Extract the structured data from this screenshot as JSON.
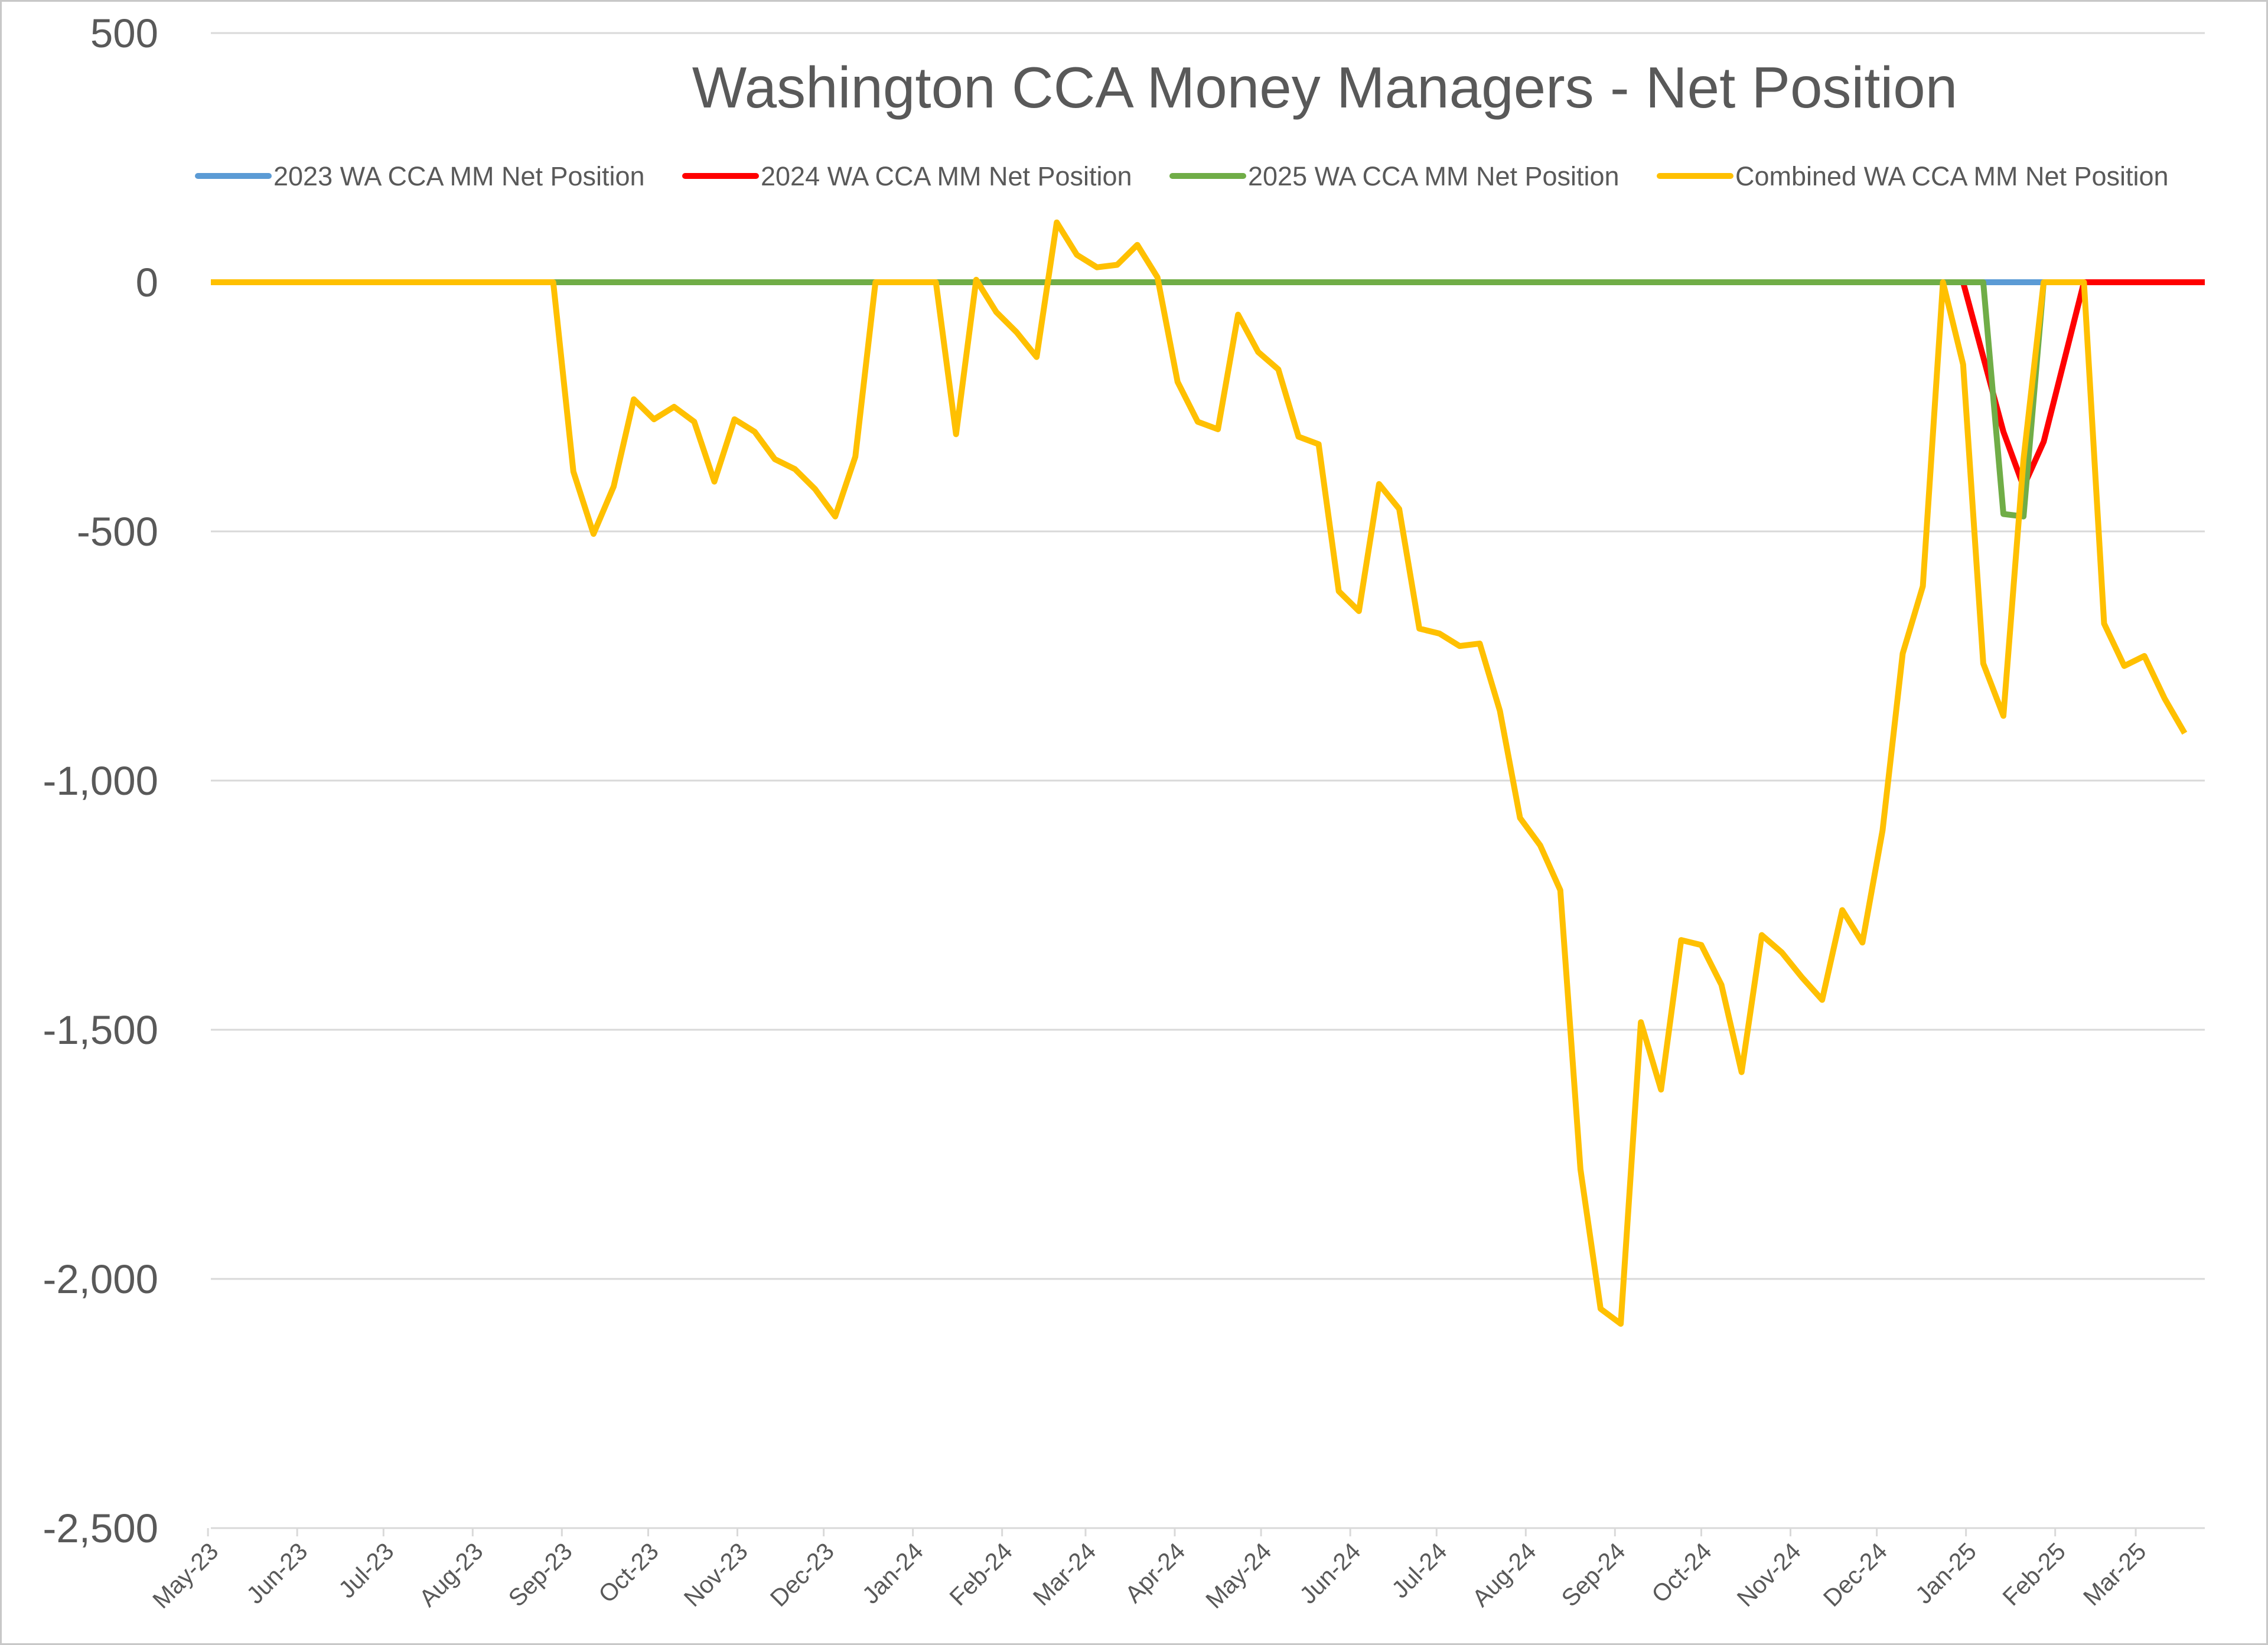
{
  "chart_data": {
    "type": "line",
    "title": "Washington CCA Money Managers - Net Position",
    "xlabel": "",
    "ylabel": "",
    "ylim": [
      -2500,
      500
    ],
    "yticks": [
      500,
      0,
      -500,
      -1000,
      -1500,
      -2000,
      -2500
    ],
    "ytick_labels": [
      "500",
      "0",
      "-500",
      "-1,000",
      "-1,500",
      "-2,000",
      "-2,500"
    ],
    "grid": true,
    "legend_position": "top",
    "x_start": "2023-05-02",
    "x_end": "2025-03-25",
    "month_ticks": [
      {
        "label": "May-23",
        "date": "2023-05-01"
      },
      {
        "label": "Jun-23",
        "date": "2023-06-01"
      },
      {
        "label": "Jul-23",
        "date": "2023-07-01"
      },
      {
        "label": "Aug-23",
        "date": "2023-08-01"
      },
      {
        "label": "Sep-23",
        "date": "2023-09-01"
      },
      {
        "label": "Oct-23",
        "date": "2023-10-01"
      },
      {
        "label": "Nov-23",
        "date": "2023-11-01"
      },
      {
        "label": "Dec-23",
        "date": "2023-12-01"
      },
      {
        "label": "Jan-24",
        "date": "2024-01-01"
      },
      {
        "label": "Feb-24",
        "date": "2024-02-01"
      },
      {
        "label": "Mar-24",
        "date": "2024-03-01"
      },
      {
        "label": "Apr-24",
        "date": "2024-04-01"
      },
      {
        "label": "May-24",
        "date": "2024-05-01"
      },
      {
        "label": "Jun-24",
        "date": "2024-06-01"
      },
      {
        "label": "Jul-24",
        "date": "2024-07-01"
      },
      {
        "label": "Aug-24",
        "date": "2024-08-01"
      },
      {
        "label": "Sep-24",
        "date": "2024-09-01"
      },
      {
        "label": "Oct-24",
        "date": "2024-10-01"
      },
      {
        "label": "Nov-24",
        "date": "2024-11-01"
      },
      {
        "label": "Dec-24",
        "date": "2024-12-01"
      },
      {
        "label": "Jan-25",
        "date": "2025-01-01"
      },
      {
        "label": "Feb-25",
        "date": "2025-02-01"
      },
      {
        "label": "Mar-25",
        "date": "2025-03-01"
      }
    ],
    "series": [
      {
        "name": "2023 WA CCA MM Net Position",
        "color": "#5b9bd5",
        "points": [
          [
            "2023-05-02",
            0
          ],
          [
            "2025-01-07",
            0
          ],
          [
            "2025-01-14",
            0
          ],
          [
            "2025-01-21",
            0
          ],
          [
            "2025-01-28",
            0
          ],
          [
            "2025-02-04",
            0
          ]
        ]
      },
      {
        "name": "2024 WA CCA MM Net Position",
        "color": "#ff0000",
        "points": [
          [
            "2024-12-31",
            0
          ],
          [
            "2025-01-07",
            -150
          ],
          [
            "2025-01-14",
            -300
          ],
          [
            "2025-01-21",
            -410
          ],
          [
            "2025-01-28",
            -320
          ],
          [
            "2025-02-11",
            0
          ],
          [
            "2025-02-18",
            0
          ],
          [
            "2025-02-25",
            0
          ],
          [
            "2025-03-04",
            0
          ],
          [
            "2025-03-11",
            0
          ],
          [
            "2025-03-18",
            0
          ],
          [
            "2025-03-25",
            0
          ]
        ]
      },
      {
        "name": "2025 WA CCA MM Net Position",
        "color": "#70ad47",
        "points": [
          [
            "2023-05-02",
            0
          ],
          [
            "2024-12-31",
            0
          ],
          [
            "2025-01-07",
            0
          ],
          [
            "2025-01-14",
            -465
          ],
          [
            "2025-01-21",
            -470
          ],
          [
            "2025-01-28",
            0
          ],
          [
            "2025-02-04",
            0
          ]
        ]
      },
      {
        "name": "Combined WA CCA MM Net Position",
        "color": "#ffc000",
        "points": [
          [
            "2023-05-02",
            0
          ],
          [
            "2023-08-29",
            0
          ],
          [
            "2023-09-05",
            -380
          ],
          [
            "2023-09-12",
            -505
          ],
          [
            "2023-09-19",
            -410
          ],
          [
            "2023-09-26",
            -235
          ],
          [
            "2023-10-03",
            -275
          ],
          [
            "2023-10-10",
            -250
          ],
          [
            "2023-10-17",
            -280
          ],
          [
            "2023-10-24",
            -400
          ],
          [
            "2023-10-31",
            -275
          ],
          [
            "2023-11-07",
            -300
          ],
          [
            "2023-11-14",
            -355
          ],
          [
            "2023-11-21",
            -375
          ],
          [
            "2023-11-28",
            -415
          ],
          [
            "2023-12-05",
            -470
          ],
          [
            "2023-12-12",
            -350
          ],
          [
            "2023-12-19",
            0
          ],
          [
            "2023-12-26",
            0
          ],
          [
            "2024-01-02",
            0
          ],
          [
            "2024-01-09",
            0
          ],
          [
            "2024-01-16",
            -305
          ],
          [
            "2024-01-23",
            5
          ],
          [
            "2024-01-30",
            -60
          ],
          [
            "2024-02-06",
            -100
          ],
          [
            "2024-02-13",
            -150
          ],
          [
            "2024-02-20",
            120
          ],
          [
            "2024-02-27",
            55
          ],
          [
            "2024-03-05",
            30
          ],
          [
            "2024-03-12",
            35
          ],
          [
            "2024-03-19",
            75
          ],
          [
            "2024-03-26",
            10
          ],
          [
            "2024-04-02",
            -200
          ],
          [
            "2024-04-09",
            -280
          ],
          [
            "2024-04-16",
            -295
          ],
          [
            "2024-04-23",
            -65
          ],
          [
            "2024-04-30",
            -140
          ],
          [
            "2024-05-07",
            -175
          ],
          [
            "2024-05-14",
            -310
          ],
          [
            "2024-05-21",
            -325
          ],
          [
            "2024-05-28",
            -620
          ],
          [
            "2024-06-04",
            -660
          ],
          [
            "2024-06-11",
            -405
          ],
          [
            "2024-06-18",
            -455
          ],
          [
            "2024-06-25",
            -695
          ],
          [
            "2024-07-02",
            -705
          ],
          [
            "2024-07-09",
            -730
          ],
          [
            "2024-07-16",
            -725
          ],
          [
            "2024-07-23",
            -860
          ],
          [
            "2024-07-30",
            -1075
          ],
          [
            "2024-08-06",
            -1130
          ],
          [
            "2024-08-13",
            -1220
          ],
          [
            "2024-08-20",
            -1780
          ],
          [
            "2024-08-27",
            -2060
          ],
          [
            "2024-09-03",
            -2090
          ],
          [
            "2024-09-10",
            -1485
          ],
          [
            "2024-09-17",
            -1620
          ],
          [
            "2024-09-24",
            -1320
          ],
          [
            "2024-10-01",
            -1330
          ],
          [
            "2024-10-08",
            -1410
          ],
          [
            "2024-10-15",
            -1585
          ],
          [
            "2024-10-22",
            -1310
          ],
          [
            "2024-10-29",
            -1345
          ],
          [
            "2024-11-05",
            -1395
          ],
          [
            "2024-11-12",
            -1440
          ],
          [
            "2024-11-19",
            -1260
          ],
          [
            "2024-11-26",
            -1325
          ],
          [
            "2024-12-03",
            -1100
          ],
          [
            "2024-12-10",
            -745
          ],
          [
            "2024-12-17",
            -610
          ],
          [
            "2024-12-24",
            0
          ],
          [
            "2024-12-31",
            -165
          ],
          [
            "2025-01-07",
            -765
          ],
          [
            "2025-01-14",
            -870
          ],
          [
            "2025-01-21",
            -355
          ],
          [
            "2025-01-28",
            0
          ],
          [
            "2025-02-04",
            0
          ],
          [
            "2025-02-11",
            0
          ],
          [
            "2025-02-18",
            -685
          ],
          [
            "2025-02-25",
            -770
          ],
          [
            "2025-03-04",
            -750
          ],
          [
            "2025-03-11",
            -835
          ],
          [
            "2025-03-18",
            -905
          ]
        ]
      }
    ]
  }
}
